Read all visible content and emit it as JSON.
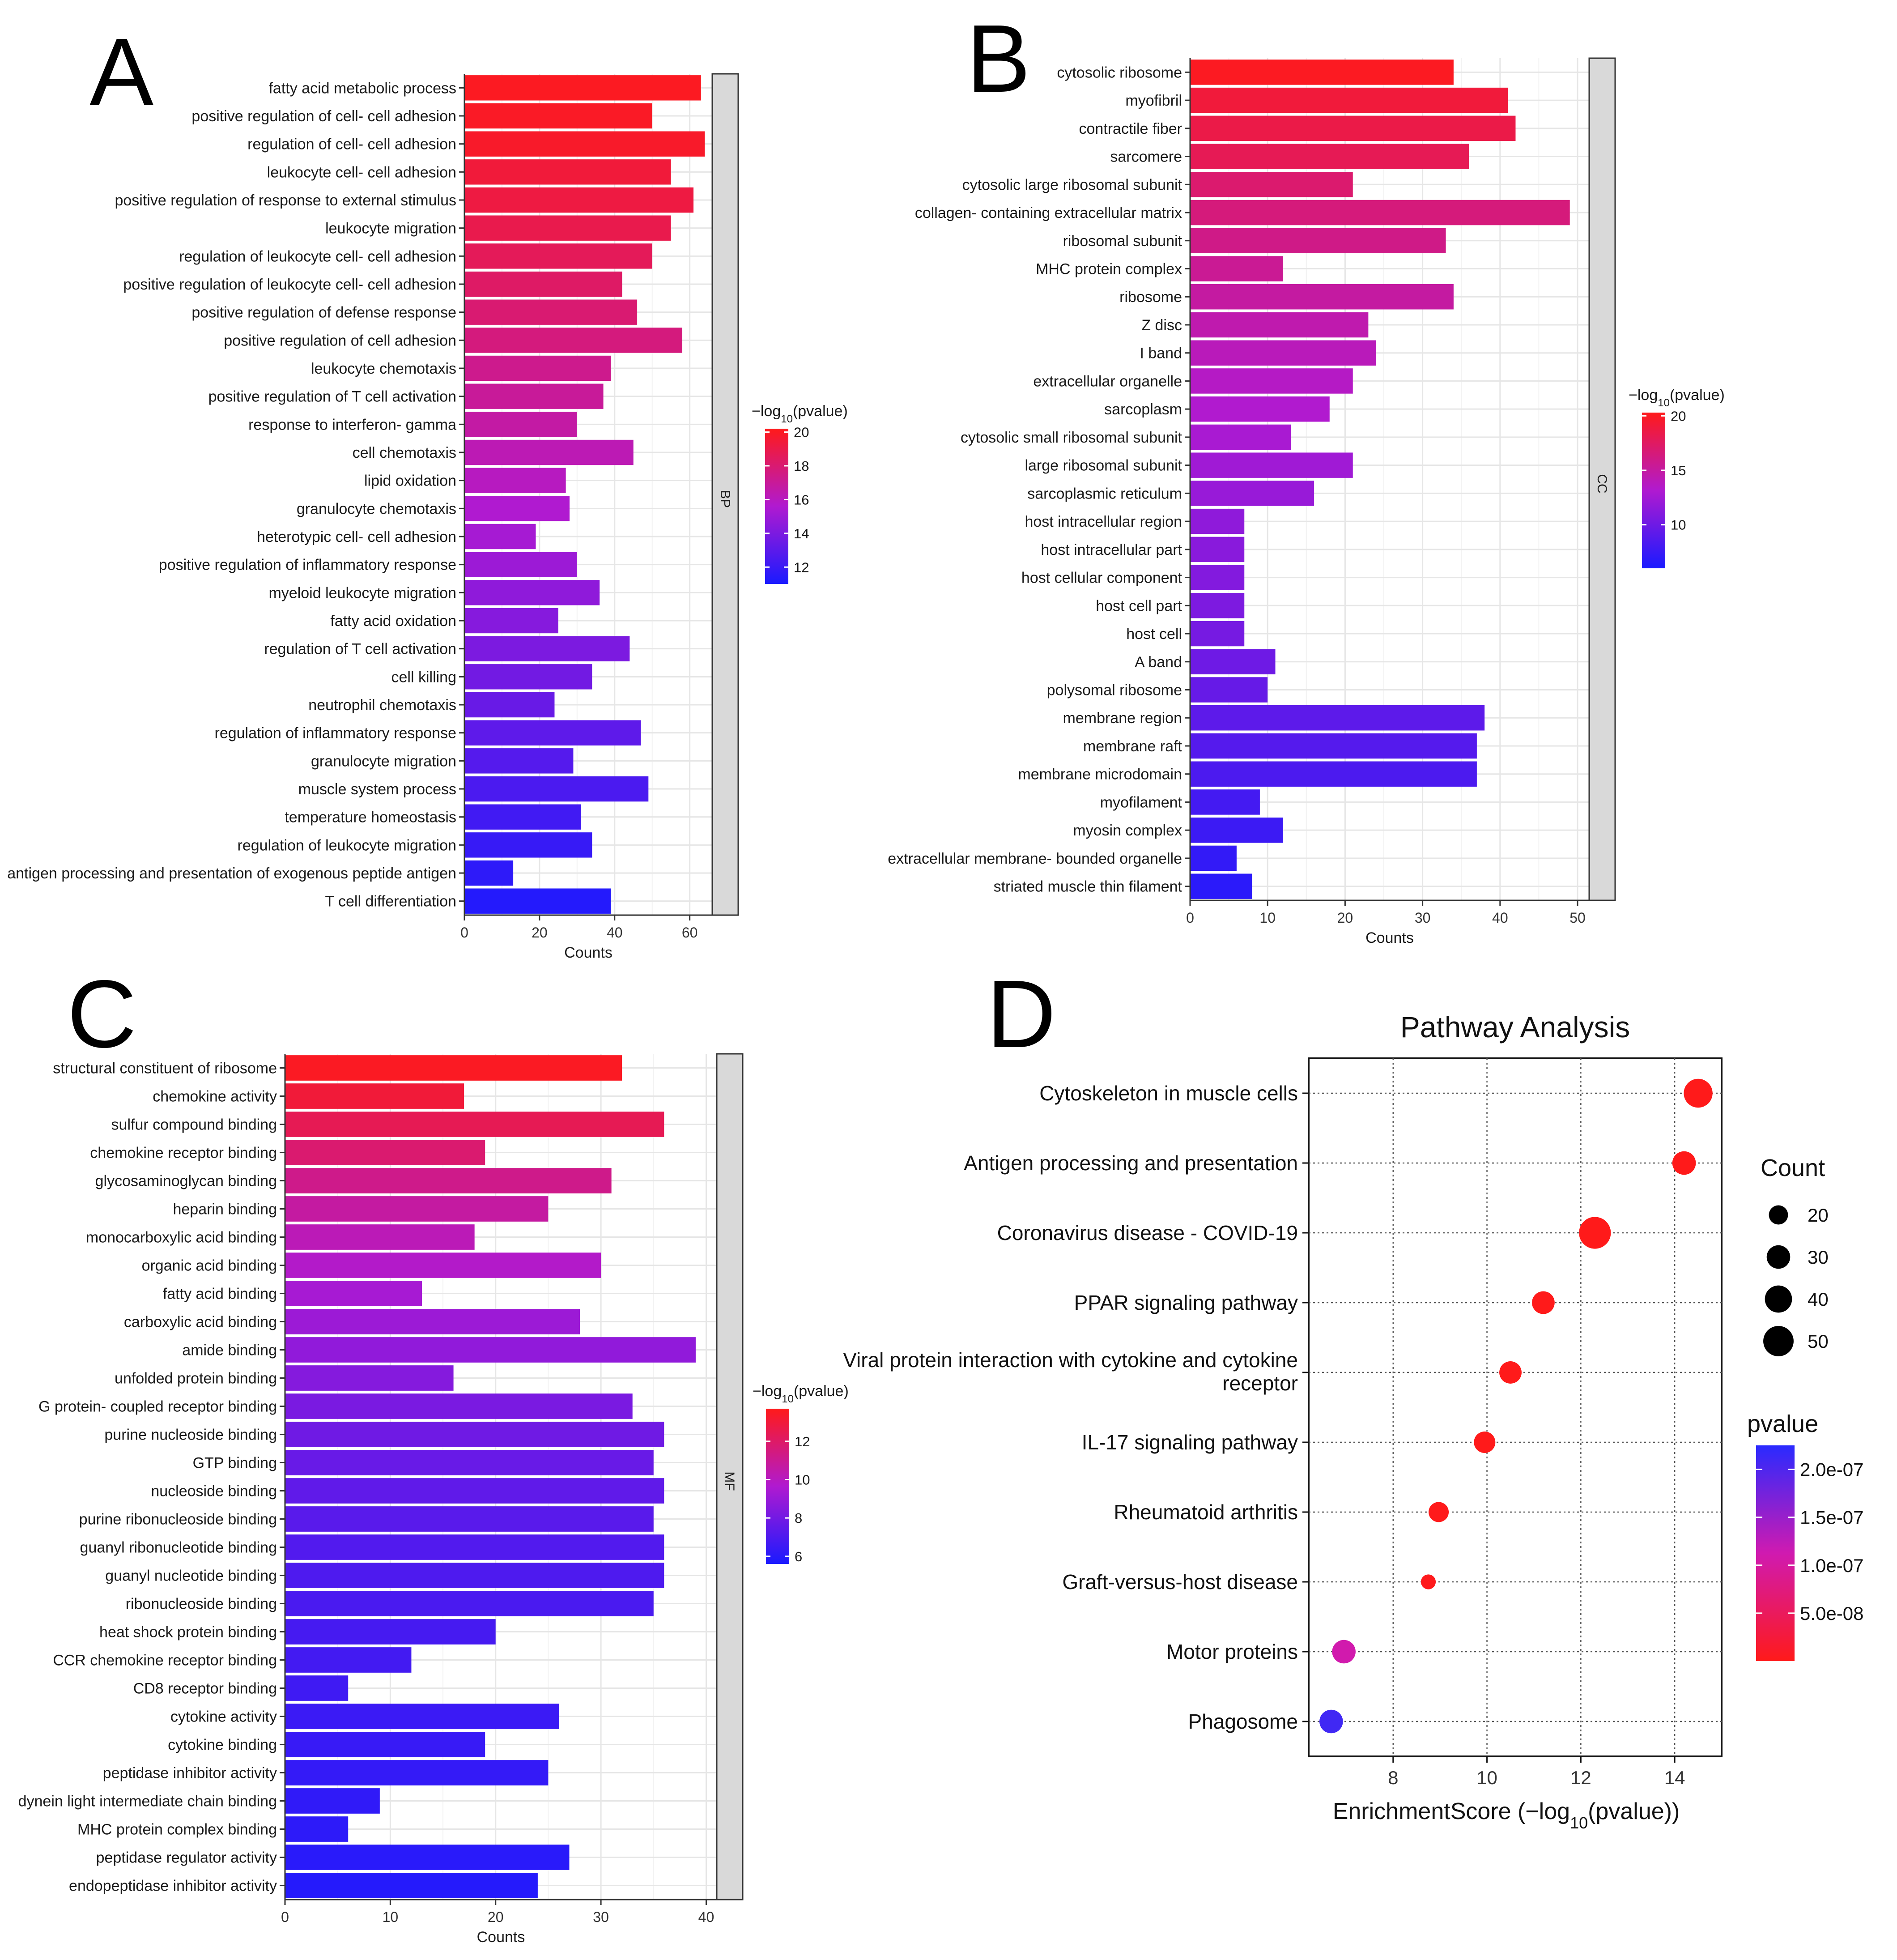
{
  "figure": {
    "panels": [
      "A",
      "B",
      "C",
      "D"
    ]
  },
  "chart_data": [
    {
      "id": "A",
      "type": "bar",
      "orientation": "horizontal",
      "facet": "BP",
      "xlabel": "Counts",
      "xticks": [
        0,
        20,
        40,
        60
      ],
      "xlim": [
        0,
        66
      ],
      "legend_title": "-log10(pvalue)",
      "legend_ticks": [
        12,
        14,
        16,
        18,
        20
      ],
      "legend_range": [
        11,
        20.2
      ],
      "categories": [
        "fatty acid metabolic process",
        "positive regulation of cell- cell adhesion",
        "regulation of cell- cell adhesion",
        "leukocyte cell- cell adhesion",
        "positive regulation of response to external stimulus",
        "leukocyte migration",
        "regulation of leukocyte cell- cell adhesion",
        "positive regulation of leukocyte cell- cell adhesion",
        "positive regulation of defense response",
        "positive regulation of cell adhesion",
        "leukocyte chemotaxis",
        "positive regulation of T cell activation",
        "response to interferon- gamma",
        "cell chemotaxis",
        "lipid oxidation",
        "granulocyte chemotaxis",
        "heterotypic cell- cell adhesion",
        "positive regulation of inflammatory response",
        "myeloid leukocyte migration",
        "fatty acid oxidation",
        "regulation of T cell activation",
        "cell killing",
        "neutrophil chemotaxis",
        "regulation of inflammatory response",
        "granulocyte migration",
        "muscle system process",
        "temperature homeostasis",
        "regulation of leukocyte migration",
        "antigen processing and presentation of exogenous peptide antigen",
        "T cell differentiation"
      ],
      "values": [
        63,
        50,
        64,
        55,
        61,
        55,
        50,
        42,
        46,
        58,
        39,
        37,
        30,
        45,
        27,
        28,
        19,
        30,
        36,
        25,
        44,
        34,
        24,
        47,
        29,
        49,
        31,
        34,
        13,
        39
      ],
      "neglog10_pvalue": [
        20.0,
        19.9,
        19.8,
        19.4,
        19.2,
        18.9,
        18.6,
        18.3,
        18.0,
        17.7,
        17.3,
        17.0,
        16.7,
        16.3,
        16.0,
        15.6,
        15.3,
        15.0,
        14.6,
        14.3,
        14.0,
        13.7,
        13.4,
        13.1,
        12.8,
        12.5,
        12.2,
        11.9,
        11.6,
        11.3
      ]
    },
    {
      "id": "B",
      "type": "bar",
      "orientation": "horizontal",
      "facet": "CC",
      "xlabel": "Counts",
      "xticks": [
        0,
        10,
        20,
        30,
        40,
        50
      ],
      "xlim": [
        0,
        51.5
      ],
      "legend_title": "-log10(pvalue)",
      "legend_ticks": [
        10,
        15,
        20
      ],
      "legend_range": [
        6,
        20.3
      ],
      "categories": [
        "cytosolic ribosome",
        "myofibril",
        "contractile fiber",
        "sarcomere",
        "cytosolic large ribosomal subunit",
        "collagen- containing extracellular matrix",
        "ribosomal subunit",
        "MHC protein complex",
        "ribosome",
        "Z disc",
        "I band",
        "extracellular organelle",
        "sarcoplasm",
        "cytosolic small ribosomal subunit",
        "large ribosomal subunit",
        "sarcoplasmic reticulum",
        "host intracellular region",
        "host intracellular part",
        "host cellular component",
        "host cell part",
        "host cell",
        "A band",
        "polysomal ribosome",
        "membrane region",
        "membrane raft",
        "membrane microdomain",
        "myofilament",
        "myosin complex",
        "extracellular membrane- bounded organelle",
        "striated muscle thin filament"
      ],
      "values": [
        34,
        41,
        42,
        36,
        21,
        49,
        33,
        12,
        34,
        23,
        24,
        21,
        18,
        13,
        21,
        16,
        7,
        7,
        7,
        7,
        7,
        11,
        10,
        38,
        37,
        37,
        9,
        12,
        6,
        8
      ],
      "neglog10_pvalue": [
        20.0,
        19.0,
        18.5,
        18.0,
        17.0,
        16.5,
        16.0,
        15.5,
        15.0,
        14.5,
        14.0,
        13.6,
        13.2,
        12.8,
        12.4,
        12.0,
        11.6,
        11.3,
        11.0,
        10.7,
        10.4,
        10.0,
        9.6,
        9.2,
        8.8,
        8.4,
        8.0,
        7.6,
        7.2,
        6.8
      ]
    },
    {
      "id": "C",
      "type": "bar",
      "orientation": "horizontal",
      "facet": "MF",
      "xlabel": "Counts",
      "xticks": [
        0,
        10,
        20,
        30,
        40
      ],
      "xlim": [
        0,
        41
      ],
      "legend_title": "-log10(pvalue)",
      "legend_ticks": [
        6,
        8,
        10,
        12
      ],
      "legend_range": [
        5.6,
        13.7
      ],
      "categories": [
        "structural constituent of ribosome",
        "chemokine activity",
        "sulfur compound binding",
        "chemokine receptor binding",
        "glycosaminoglycan binding",
        "heparin binding",
        "monocarboxylic acid binding",
        "organic acid binding",
        "fatty acid binding",
        "carboxylic acid binding",
        "amide binding",
        "unfolded protein binding",
        "G protein- coupled receptor binding",
        "purine nucleoside binding",
        "GTP binding",
        "nucleoside binding",
        "purine ribonucleoside binding",
        "guanyl ribonucleotide binding",
        "guanyl nucleotide binding",
        "ribonucleoside binding",
        "heat shock protein binding",
        "CCR chemokine receptor binding",
        "CD8 receptor binding",
        "cytokine activity",
        "cytokine binding",
        "peptidase inhibitor activity",
        "dynein light intermediate chain binding",
        "MHC protein complex binding",
        "peptidase regulator activity",
        "endopeptidase inhibitor activity"
      ],
      "values": [
        32,
        17,
        36,
        19,
        31,
        25,
        18,
        30,
        13,
        28,
        39,
        16,
        33,
        36,
        35,
        36,
        35,
        36,
        36,
        35,
        20,
        12,
        6,
        26,
        19,
        25,
        9,
        6,
        27,
        24
      ],
      "neglog10_pvalue": [
        13.5,
        13.0,
        12.4,
        11.8,
        11.2,
        10.7,
        10.2,
        9.8,
        9.4,
        9.1,
        8.8,
        8.5,
        8.2,
        7.9,
        7.7,
        7.5,
        7.3,
        7.1,
        7.0,
        6.9,
        6.8,
        6.7,
        6.6,
        6.5,
        6.4,
        6.3,
        6.2,
        6.1,
        6.0,
        5.9
      ]
    },
    {
      "id": "D",
      "type": "scatter",
      "title": "Pathway Analysis",
      "xlabel": "EnrichmentScore (-log10(pvalue))",
      "xticks": [
        8,
        10,
        12,
        14
      ],
      "xlim": [
        6.2,
        15.0
      ],
      "categories": [
        "Cytoskeleton in muscle cells",
        "Antigen processing and presentation",
        "Coronavirus disease - COVID-19",
        "PPAR signaling pathway",
        "Viral protein interaction with cytokine and cytokine receptor",
        "IL-17 signaling pathway",
        "Rheumatoid arthritis",
        "Graft-versus-host disease",
        "Motor proteins",
        "Phagosome"
      ],
      "enrichment_score": [
        14.5,
        14.2,
        12.3,
        11.2,
        10.5,
        9.95,
        8.97,
        8.75,
        6.95,
        6.68
      ],
      "count": [
        45,
        30,
        55,
        28,
        27,
        25,
        22,
        12,
        30,
        30
      ],
      "pvalue": [
        3e-15,
        6e-15,
        5e-13,
        6e-12,
        3e-11,
        1.1e-10,
        1.1e-09,
        1.8e-09,
        1.1e-07,
        2.1e-07
      ],
      "size_legend_title": "Count",
      "size_legend": [
        20,
        30,
        40,
        50
      ],
      "color_legend_title": "pvalue",
      "color_legend_ticks": [
        "2.0e-07",
        "1.5e-07",
        "1.0e-07",
        "5.0e-08"
      ],
      "color_legend_values": [
        2e-07,
        1.5e-07,
        1e-07,
        5e-08
      ],
      "color_range": [
        0,
        2.25e-07
      ]
    }
  ]
}
